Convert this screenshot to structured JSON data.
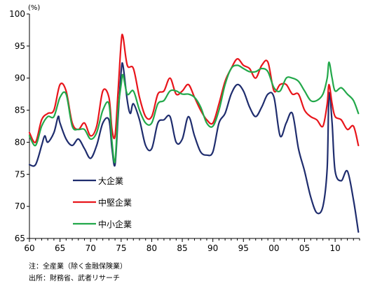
{
  "notes": {
    "line1": "注：全産業（除く金融保険業）",
    "line2": "出所：財務省、武者リサーチ"
  },
  "chart_data": {
    "type": "line",
    "ylabel": "(%)",
    "ylim": [
      65,
      100
    ],
    "yticks": [
      65,
      70,
      75,
      80,
      85,
      90,
      95,
      100
    ],
    "xlim": [
      1960,
      2014
    ],
    "xticks": [
      1960,
      1965,
      1970,
      1975,
      1980,
      1985,
      1990,
      1995,
      2000,
      2005,
      2010
    ],
    "xtick_labels": [
      "60",
      "65",
      "70",
      "75",
      "80",
      "85",
      "90",
      "95",
      "00",
      "05",
      "10"
    ],
    "grid": false,
    "legend_position": "lower-left",
    "series": [
      {
        "name": "大企業",
        "color": "#1f2d6e",
        "x": [
          1960,
          1961,
          1962,
          1962.5,
          1963,
          1964,
          1964.7,
          1965,
          1966,
          1967,
          1968,
          1969,
          1970,
          1971,
          1972,
          1973,
          1973.5,
          1974,
          1974.5,
          1975,
          1975.3,
          1976,
          1976.5,
          1977,
          1978,
          1979,
          1980,
          1981,
          1982,
          1983,
          1984,
          1985,
          1986,
          1987,
          1988,
          1989,
          1990,
          1991,
          1992,
          1993,
          1994,
          1995,
          1996,
          1997,
          1998,
          1999,
          2000,
          2001,
          2002,
          2003,
          2004,
          2005,
          2006,
          2007,
          2008,
          2008.7,
          2009,
          2009.5,
          2010,
          2011,
          2012,
          2013,
          2013.8
        ],
        "values": [
          76.5,
          76.5,
          79.5,
          81,
          80,
          81.5,
          84,
          83,
          80.5,
          79.5,
          80.5,
          79,
          77.5,
          79.5,
          83,
          83.5,
          79,
          76.5,
          84,
          91,
          92,
          86.5,
          84.5,
          86,
          83.5,
          79.5,
          79,
          83,
          83.5,
          84,
          80,
          80.5,
          84,
          81,
          78.5,
          78,
          78.5,
          83,
          84.5,
          87.5,
          89,
          88,
          85.5,
          84,
          85.5,
          87.5,
          87,
          81,
          83,
          84.5,
          79,
          75.5,
          71.5,
          69,
          70,
          76,
          87.5,
          83,
          75.5,
          74,
          75.5,
          71,
          66
        ]
      },
      {
        "name": "中堅企業",
        "color": "#e8151b",
        "x": [
          1960,
          1961,
          1962,
          1963,
          1964,
          1965,
          1966,
          1967,
          1968,
          1969,
          1970,
          1971,
          1972,
          1973,
          1973.5,
          1974,
          1974.5,
          1975,
          1975.3,
          1976,
          1977,
          1978,
          1979,
          1980,
          1981,
          1982,
          1983,
          1984,
          1985,
          1986,
          1987,
          1988,
          1989,
          1990,
          1991,
          1992,
          1993,
          1994,
          1995,
          1996,
          1997,
          1998,
          1999,
          2000,
          2001,
          2002,
          2003,
          2004,
          2005,
          2006,
          2007,
          2008,
          2008.7,
          2009,
          2009.5,
          2010,
          2011,
          2012,
          2013,
          2013.8
        ],
        "values": [
          81.5,
          80,
          83.5,
          84.5,
          85,
          89,
          88,
          83,
          82,
          83,
          81,
          82.5,
          88,
          87,
          82,
          81,
          88,
          95.5,
          96.5,
          92,
          91.5,
          87,
          84,
          84,
          87.5,
          88,
          90,
          87.5,
          88,
          89,
          87,
          85,
          83.5,
          83,
          86,
          89.5,
          91.5,
          93,
          92,
          91.5,
          90,
          92,
          92.5,
          88,
          89,
          89,
          87.5,
          87.5,
          85,
          84,
          83.5,
          82.5,
          86,
          89,
          86,
          84,
          83.5,
          82,
          82.5,
          79.5
        ]
      },
      {
        "name": "中小企業",
        "color": "#22a84a",
        "x": [
          1960,
          1961,
          1962,
          1963,
          1964,
          1965,
          1966,
          1967,
          1968,
          1969,
          1970,
          1971,
          1972,
          1973,
          1973.5,
          1974,
          1974.5,
          1975,
          1975.3,
          1976,
          1977,
          1978,
          1979,
          1980,
          1981,
          1982,
          1983,
          1984,
          1985,
          1986,
          1987,
          1988,
          1989,
          1990,
          1991,
          1992,
          1993,
          1994,
          1995,
          1996,
          1997,
          1998,
          1999,
          2000,
          2001,
          2002,
          2003,
          2004,
          2005,
          2006,
          2007,
          2008,
          2008.7,
          2009,
          2009.5,
          2010,
          2011,
          2012,
          2013,
          2013.8
        ],
        "values": [
          81,
          79.5,
          82.5,
          84,
          84,
          87,
          87.5,
          82.5,
          82,
          82,
          80.5,
          81.5,
          85,
          86,
          80,
          77,
          85,
          89,
          90.5,
          87.5,
          88,
          85,
          83,
          83,
          86,
          86.5,
          88,
          88,
          87.5,
          87.5,
          87,
          85.5,
          83,
          82.5,
          85,
          89,
          91.5,
          92,
          91.5,
          91,
          91,
          91.5,
          91,
          88.5,
          88,
          90,
          90,
          89.5,
          88,
          86.5,
          86.5,
          87.5,
          90,
          92.5,
          90,
          88,
          88.5,
          87.5,
          86.5,
          84.5
        ]
      }
    ]
  }
}
